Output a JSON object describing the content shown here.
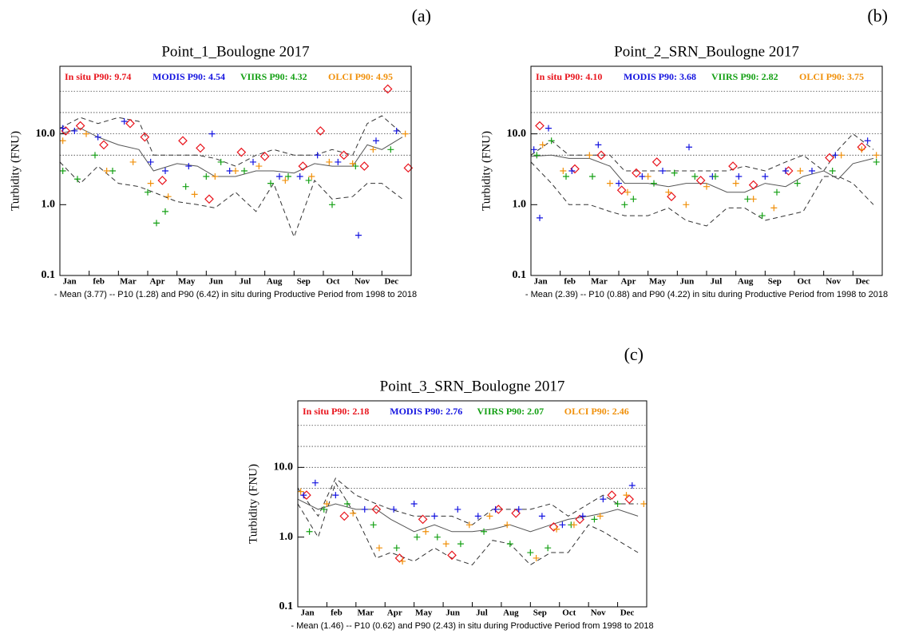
{
  "chart_data": [
    {
      "type": "scatter",
      "panel_label": "(a)",
      "title": "Point_1_Boulogne 2017",
      "y_label": "Turbidity (FNU)",
      "caption": "- Mean (3.77) -- P10 (1.28) and P90 (6.42) in situ during Productive Period from 1998 to 2018",
      "log_scale": true,
      "xlim": [
        0,
        12
      ],
      "xticks": [
        {
          "value": 0,
          "label": "Jan"
        },
        {
          "value": 1,
          "label": "feb"
        },
        {
          "value": 2,
          "label": "Mar"
        },
        {
          "value": 3,
          "label": "Apr"
        },
        {
          "value": 4,
          "label": "May"
        },
        {
          "value": 5,
          "label": "Jun"
        },
        {
          "value": 6,
          "label": "Jul"
        },
        {
          "value": 7,
          "label": "Aug"
        },
        {
          "value": 8,
          "label": "Sep"
        },
        {
          "value": 9,
          "label": "Oct"
        },
        {
          "value": 10,
          "label": "Nov"
        },
        {
          "value": 11,
          "label": "Dec"
        }
      ],
      "ylim": [
        0.1,
        90
      ],
      "yticks": [
        0.1,
        {
          "value": 1,
          "label": "1.0"
        },
        {
          "value": 10,
          "label": "10.0"
        }
      ],
      "hlines": [
        5,
        10,
        20,
        40
      ],
      "series": [
        {
          "name": "In situ P90: 9.74",
          "color": "#e8141c",
          "marker": "diamond",
          "x": [
            0.2,
            0.7,
            1.5,
            2.4,
            2.9,
            3.5,
            4.2,
            4.8,
            5.1,
            6.2,
            7.0,
            8.3,
            8.9,
            9.7,
            10.4,
            11.2,
            11.9
          ],
          "values": [
            11,
            13,
            7,
            14,
            9,
            2.2,
            8,
            6.3,
            1.2,
            5.5,
            4.8,
            3.5,
            11,
            5,
            3.5,
            43,
            3.3
          ]
        },
        {
          "name": "MODIS P90: 4.54",
          "color": "#1414e0",
          "marker": "plus",
          "x": [
            0.1,
            0.5,
            1.3,
            2.2,
            3.1,
            3.6,
            4.4,
            5.2,
            5.8,
            6.6,
            7.5,
            8.2,
            8.8,
            9.5,
            10.2,
            10.8,
            11.5
          ],
          "values": [
            12,
            11,
            9,
            15,
            4,
            3,
            3.5,
            10,
            3,
            4,
            2.5,
            2.5,
            5,
            4,
            0.37,
            8,
            11
          ]
        },
        {
          "name": "VIIRS P90: 4.32",
          "color": "#14a014",
          "marker": "plus",
          "x": [
            0.1,
            0.6,
            1.2,
            1.8,
            3.0,
            3.3,
            3.6,
            4.3,
            5.0,
            5.5,
            6.3,
            7.2,
            7.8,
            8.5,
            9.3,
            10.1,
            11.3
          ],
          "values": [
            3,
            2.3,
            5,
            3,
            1.5,
            0.55,
            0.8,
            1.8,
            2.5,
            4,
            3,
            2,
            2.5,
            2.2,
            1.0,
            3.5,
            6
          ]
        },
        {
          "name": "OLCI P90: 4.95",
          "color": "#f0900a",
          "marker": "plus",
          "x": [
            0.1,
            0.9,
            1.6,
            2.5,
            3.1,
            3.7,
            4.6,
            5.3,
            6.0,
            6.8,
            7.7,
            8.6,
            9.2,
            10.0,
            10.7,
            11.8
          ],
          "values": [
            8,
            10,
            3,
            4,
            2,
            1.3,
            1.4,
            2.5,
            3,
            3.5,
            2.2,
            2.5,
            4,
            3.8,
            6,
            10
          ]
        }
      ],
      "lines": [
        {
          "style": "solid",
          "x": [
            0,
            0.7,
            1.3,
            2,
            2.7,
            3.2,
            4,
            4.7,
            5.3,
            6,
            6.7,
            7.3,
            8,
            8.7,
            9.3,
            10,
            10.5,
            11,
            11.7
          ],
          "values": [
            10,
            12,
            9,
            7,
            6,
            3,
            3.8,
            3.5,
            2.5,
            2.5,
            3,
            3,
            2.8,
            3.8,
            3.5,
            3.5,
            7,
            6,
            9
          ]
        },
        {
          "style": "dashed",
          "x": [
            0,
            0.7,
            1.3,
            2,
            2.7,
            3.2,
            4,
            4.7,
            5.3,
            6,
            6.7,
            7.3,
            8,
            8.7,
            9.3,
            10,
            10.5,
            11,
            11.7
          ],
          "values": [
            4,
            2,
            3.5,
            2,
            1.8,
            1.5,
            1.1,
            1,
            0.9,
            1.5,
            0.8,
            2,
            0.35,
            2.2,
            1.2,
            1.3,
            2,
            2,
            1.2
          ]
        },
        {
          "style": "dashed",
          "x": [
            0,
            0.7,
            1.3,
            2,
            2.7,
            3.2,
            4,
            4.7,
            5.3,
            6,
            6.7,
            7.3,
            8,
            8.7,
            9.3,
            10,
            10.5,
            11,
            11.7
          ],
          "values": [
            12,
            17,
            14,
            17,
            15,
            5,
            5,
            5,
            4.5,
            3.5,
            5,
            6,
            5,
            5,
            6,
            5,
            14,
            18,
            10
          ]
        }
      ]
    },
    {
      "type": "scatter",
      "panel_label": "(b)",
      "title": "Point_2_SRN_Boulogne 2017",
      "y_label": "Turbidity (FNU)",
      "caption": "- Mean (2.39) -- P10 (0.88) and P90 (4.22) in situ during Productive Period from 1998 to 2018",
      "log_scale": true,
      "xlim": [
        0,
        12
      ],
      "xticks": [
        {
          "value": 0,
          "label": "Jan"
        },
        {
          "value": 1,
          "label": "feb"
        },
        {
          "value": 2,
          "label": "Mar"
        },
        {
          "value": 3,
          "label": "Apr"
        },
        {
          "value": 4,
          "label": "May"
        },
        {
          "value": 5,
          "label": "Jun"
        },
        {
          "value": 6,
          "label": "Jul"
        },
        {
          "value": 7,
          "label": "Aug"
        },
        {
          "value": 8,
          "label": "Sep"
        },
        {
          "value": 9,
          "label": "Oct"
        },
        {
          "value": 10,
          "label": "Nov"
        },
        {
          "value": 11,
          "label": "Dec"
        }
      ],
      "ylim": [
        0.1,
        90
      ],
      "yticks": [
        0.1,
        {
          "value": 1,
          "label": "1.0"
        },
        {
          "value": 10,
          "label": "10.0"
        }
      ],
      "hlines": [
        5,
        10,
        20,
        40
      ],
      "series": [
        {
          "name": "In situ P90: 4.10",
          "color": "#e8141c",
          "marker": "diamond",
          "x": [
            0.3,
            1.5,
            2.4,
            3.1,
            3.6,
            4.3,
            4.8,
            5.8,
            6.9,
            7.6,
            8.8,
            10.2,
            11.3
          ],
          "values": [
            13,
            3.2,
            5,
            1.6,
            2.8,
            4,
            1.3,
            2.2,
            3.5,
            1.9,
            3,
            4.6,
            6.5
          ]
        },
        {
          "name": "MODIS P90: 3.68",
          "color": "#1414e0",
          "marker": "plus",
          "x": [
            0.1,
            0.3,
            0.6,
            1.4,
            2.3,
            3.0,
            3.8,
            4.5,
            5.4,
            6.2,
            7.1,
            8.0,
            8.7,
            9.6,
            10.4,
            11.5
          ],
          "values": [
            6,
            0.65,
            12,
            3,
            7,
            2,
            2.5,
            3,
            6.5,
            2.5,
            2.5,
            2.5,
            3,
            3,
            5,
            8
          ]
        },
        {
          "name": "VIIRS P90: 2.82",
          "color": "#14a014",
          "marker": "plus",
          "x": [
            0.2,
            0.7,
            1.2,
            2.1,
            3.2,
            3.5,
            4.2,
            4.9,
            5.6,
            6.3,
            7.4,
            7.9,
            8.4,
            9.1,
            10.3,
            11.8
          ],
          "values": [
            5,
            8,
            2.5,
            2.5,
            1,
            1.2,
            2,
            2.8,
            2.5,
            2.5,
            1.2,
            0.7,
            1.5,
            2,
            3,
            4
          ]
        },
        {
          "name": "OLCI P90: 3.75",
          "color": "#f0900a",
          "marker": "plus",
          "x": [
            0.4,
            1.1,
            2.0,
            2.7,
            3.3,
            4.0,
            4.7,
            5.3,
            6.0,
            7.0,
            7.6,
            8.3,
            9.2,
            10.6,
            11.3,
            11.8
          ],
          "values": [
            7,
            3,
            5,
            2,
            1.5,
            2.5,
            1.5,
            1,
            1.8,
            2,
            1.2,
            0.9,
            3,
            5,
            6,
            5
          ]
        }
      ],
      "lines": [
        {
          "style": "solid",
          "x": [
            0,
            0.7,
            1.3,
            2,
            2.7,
            3.2,
            4,
            4.7,
            5.3,
            6,
            6.7,
            7.3,
            8,
            8.7,
            9.3,
            10,
            10.5,
            11,
            11.7
          ],
          "values": [
            4.8,
            5,
            4.5,
            4.5,
            3.5,
            2,
            2,
            1.8,
            2,
            2,
            1.5,
            1.5,
            2,
            1.8,
            2.5,
            3,
            2.3,
            3.8,
            4.5
          ]
        },
        {
          "style": "dashed",
          "x": [
            0,
            0.7,
            1.3,
            2,
            2.7,
            3.2,
            4,
            4.7,
            5.3,
            6,
            6.7,
            7.3,
            8,
            8.7,
            9.3,
            10,
            10.5,
            11,
            11.7
          ],
          "values": [
            4,
            2,
            1,
            1,
            0.8,
            0.7,
            0.7,
            0.9,
            0.6,
            0.5,
            0.9,
            0.9,
            0.6,
            0.7,
            0.8,
            2.5,
            2.5,
            2,
            1
          ]
        },
        {
          "style": "dashed",
          "x": [
            0,
            0.7,
            1.3,
            2,
            2.7,
            3.2,
            4,
            4.7,
            5.3,
            6,
            6.7,
            7.3,
            8,
            8.7,
            9.3,
            10,
            10.5,
            11,
            11.7
          ],
          "values": [
            5,
            8,
            5,
            5,
            5,
            3,
            3,
            3,
            3,
            3,
            3,
            3.5,
            3,
            4,
            5,
            3,
            6,
            10,
            6
          ]
        }
      ]
    },
    {
      "type": "scatter",
      "panel_label": "(c)",
      "title": "Point_3_SRN_Boulogne 2017",
      "y_label": "Turbidity (FNU)",
      "caption": "- Mean (1.46) -- P10 (0.62) and P90 (2.43) in situ during Productive Period from 1998 to 2018",
      "log_scale": true,
      "xlim": [
        0,
        12
      ],
      "xticks": [
        {
          "value": 0,
          "label": "Jan"
        },
        {
          "value": 1,
          "label": "feb"
        },
        {
          "value": 2,
          "label": "Mar"
        },
        {
          "value": 3,
          "label": "Apr"
        },
        {
          "value": 4,
          "label": "May"
        },
        {
          "value": 5,
          "label": "Jun"
        },
        {
          "value": 6,
          "label": "Jul"
        },
        {
          "value": 7,
          "label": "Aug"
        },
        {
          "value": 8,
          "label": "Sep"
        },
        {
          "value": 9,
          "label": "Oct"
        },
        {
          "value": 10,
          "label": "Nov"
        },
        {
          "value": 11,
          "label": "Dec"
        }
      ],
      "ylim": [
        0.1,
        90
      ],
      "yticks": [
        0.1,
        {
          "value": 1,
          "label": "1.0"
        },
        {
          "value": 10,
          "label": "10.0"
        }
      ],
      "hlines": [
        5,
        10,
        20,
        40
      ],
      "series": [
        {
          "name": "In situ P90: 2.18",
          "color": "#e8141c",
          "marker": "diamond",
          "x": [
            0.3,
            1.6,
            2.7,
            3.5,
            4.3,
            5.3,
            6.9,
            7.5,
            8.8,
            9.7,
            10.8,
            11.4
          ],
          "values": [
            4,
            2,
            2.5,
            0.5,
            1.8,
            0.55,
            2.5,
            2.2,
            1.4,
            1.8,
            4,
            3.5
          ]
        },
        {
          "name": "MODIS P90: 2.76",
          "color": "#1414e0",
          "marker": "plus",
          "x": [
            0.2,
            0.6,
            1.3,
            2.3,
            3.3,
            4.0,
            4.7,
            5.5,
            6.2,
            6.8,
            7.6,
            8.4,
            9.1,
            9.8,
            10.5,
            11.5
          ],
          "values": [
            4,
            6,
            4,
            2.5,
            2.5,
            3,
            2,
            2.5,
            2,
            2.5,
            2.5,
            2,
            1.5,
            2,
            3.5,
            5.5
          ]
        },
        {
          "name": "VIIRS P90: 2.07",
          "color": "#14a014",
          "marker": "plus",
          "x": [
            0.4,
            0.9,
            1.7,
            2.6,
            3.4,
            4.1,
            4.8,
            5.6,
            6.4,
            7.3,
            8.0,
            8.6,
            9.4,
            10.2,
            11.0
          ],
          "values": [
            1.2,
            2.5,
            3,
            1.5,
            0.7,
            1,
            1,
            0.8,
            1.2,
            0.8,
            0.6,
            0.7,
            1.5,
            1.8,
            3
          ]
        },
        {
          "name": "OLCI P90: 2.46",
          "color": "#f0900a",
          "marker": "plus",
          "x": [
            0.1,
            1.0,
            1.9,
            2.8,
            3.6,
            4.4,
            5.1,
            5.9,
            6.6,
            7.2,
            8.2,
            8.9,
            9.5,
            10.4,
            11.3,
            11.9
          ],
          "values": [
            4.5,
            3,
            2.2,
            0.7,
            0.45,
            1.2,
            0.8,
            1.5,
            2,
            1.5,
            0.5,
            1.3,
            1.5,
            2,
            4,
            3
          ]
        }
      ],
      "lines": [
        {
          "style": "solid",
          "x": [
            0,
            0.7,
            1.3,
            2,
            2.7,
            3.2,
            4,
            4.7,
            5.3,
            6,
            6.7,
            7.3,
            8,
            8.7,
            9.3,
            10,
            10.5,
            11,
            11.7
          ],
          "values": [
            3.5,
            2.5,
            3,
            2.5,
            2.5,
            1.8,
            1.2,
            1.5,
            1.2,
            1.2,
            1.3,
            1.5,
            1.2,
            1.5,
            1.8,
            2,
            2.2,
            2.5,
            2
          ]
        },
        {
          "style": "dashed",
          "x": [
            0,
            0.7,
            1.3,
            2,
            2.7,
            3.2,
            4,
            4.7,
            5.3,
            6,
            6.7,
            7.3,
            8,
            8.7,
            9.3,
            10,
            10.5,
            11,
            11.7
          ],
          "values": [
            3,
            1,
            6,
            2,
            0.5,
            0.6,
            0.45,
            0.7,
            0.5,
            0.4,
            0.9,
            0.8,
            0.4,
            0.6,
            0.6,
            1.5,
            1.2,
            0.9,
            0.6
          ]
        },
        {
          "style": "dashed",
          "x": [
            0,
            0.7,
            1.3,
            2,
            2.7,
            3.2,
            4,
            4.7,
            5.3,
            6,
            6.7,
            7.3,
            8,
            8.7,
            9.3,
            10,
            10.5,
            11,
            11.7
          ],
          "values": [
            5,
            2,
            7,
            4,
            3,
            2.5,
            2,
            2,
            2,
            1.5,
            2.5,
            2.5,
            2.5,
            3,
            2,
            3,
            4,
            3,
            3
          ]
        }
      ]
    }
  ]
}
